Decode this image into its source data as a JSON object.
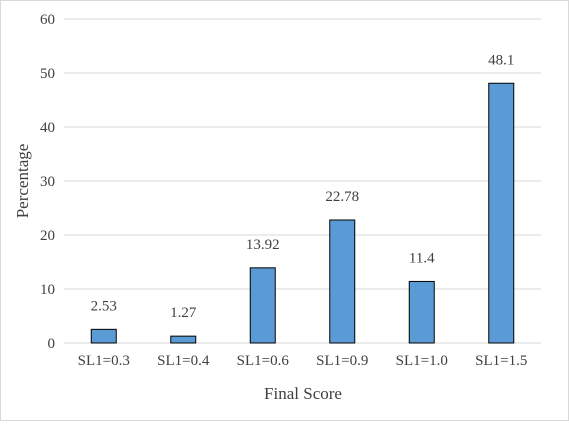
{
  "chart_data": {
    "type": "bar",
    "categories": [
      "SL1=0.3",
      "SL1=0.4",
      "SL1=0.6",
      "SL1=0.9",
      "SL1=1.0",
      "SL1=1.5"
    ],
    "values": [
      2.53,
      1.27,
      13.92,
      22.78,
      11.4,
      48.1
    ],
    "data_labels": [
      "2.53",
      "1.27",
      "13.92",
      "22.78",
      "11.4",
      "48.1"
    ],
    "title": "",
    "xlabel": "Final Score",
    "ylabel": "Percentage",
    "ylim": [
      0,
      60
    ],
    "yticks": [
      0,
      10,
      20,
      30,
      40,
      50,
      60
    ],
    "grid": "horizontal",
    "legend": "none",
    "bar_color": "#5b9bd5",
    "bar_edge_color": "#000000",
    "grid_color": "#d9d9d9"
  }
}
